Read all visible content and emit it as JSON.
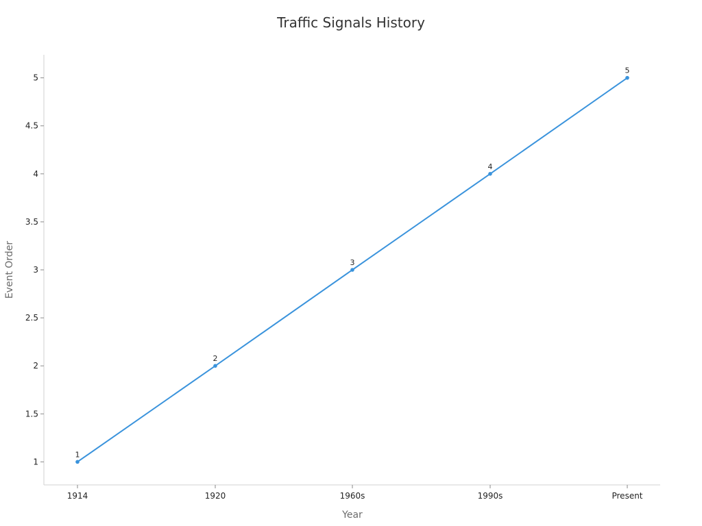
{
  "chart_data": {
    "type": "line",
    "title": "Traffic Signals History",
    "xlabel": "Year",
    "ylabel": "Event Order",
    "categories": [
      "1914",
      "1920",
      "1960s",
      "1990s",
      "Present"
    ],
    "series": [
      {
        "values": [
          1,
          2,
          3,
          4,
          5
        ],
        "color": "#3a93dc"
      }
    ],
    "y_ticks": [
      "1",
      "1.5",
      "2",
      "2.5",
      "3",
      "3.5",
      "4",
      "4.5",
      "5"
    ],
    "data_labels": [
      "1",
      "2",
      "3",
      "4",
      "5"
    ],
    "ylim": [
      0.76,
      5.24
    ],
    "grid": false,
    "legend": "none"
  }
}
